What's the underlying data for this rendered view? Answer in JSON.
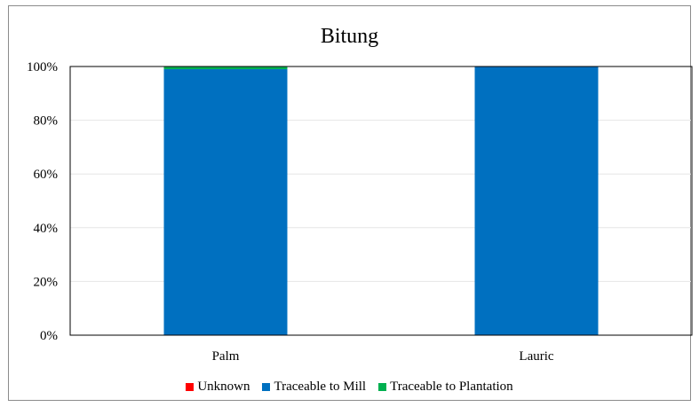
{
  "colors": {
    "unknown": "#FF0000",
    "mill": "#0070C0",
    "plantation": "#00B050"
  },
  "chart_data": {
    "type": "bar",
    "stacked": true,
    "title": "Bitung",
    "categories": [
      "Palm",
      "Lauric"
    ],
    "series": [
      {
        "name": "Unknown",
        "values": [
          0,
          0
        ]
      },
      {
        "name": "Traceable to Mill",
        "values": [
          99,
          100
        ]
      },
      {
        "name": "Traceable to Plantation",
        "values": [
          1,
          0
        ]
      }
    ],
    "ylim": [
      0,
      100
    ],
    "yticks": [
      "0%",
      "20%",
      "40%",
      "60%",
      "80%",
      "100%"
    ],
    "grid": true,
    "legend_position": "bottom"
  }
}
